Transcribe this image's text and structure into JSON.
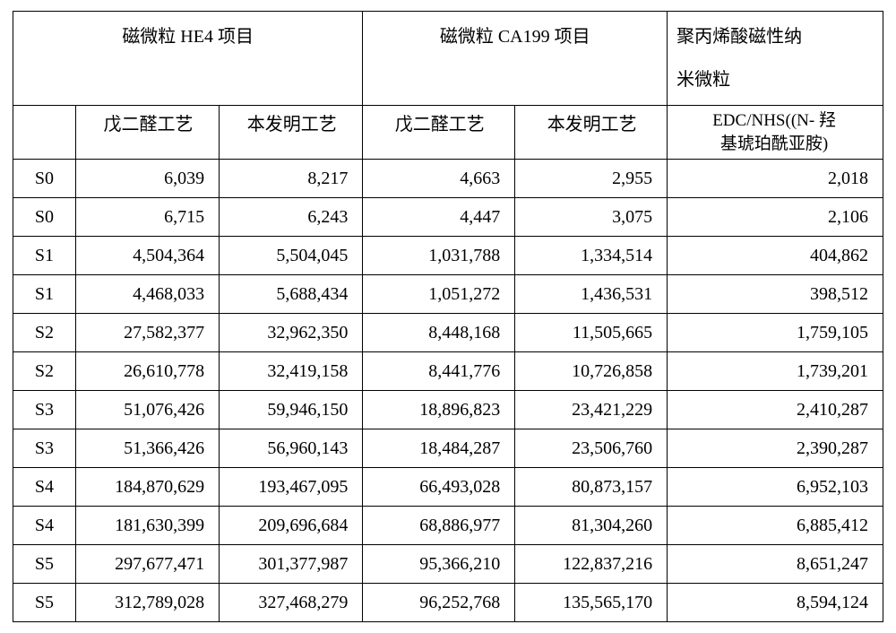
{
  "table": {
    "headers": {
      "group1": "磁微粒 HE4 项目",
      "group2": "磁微粒 CA199 项目",
      "group3_l1": "聚丙烯酸磁性纳",
      "group3_l2": "米微粒",
      "sub_he4_a": "戊二醛工艺",
      "sub_he4_b": "本发明工艺",
      "sub_ca_a": "戊二醛工艺",
      "sub_ca_b": "本发明工艺",
      "sub_paa_l1": "EDC/NHS((N- 羟",
      "sub_paa_l2": "基琥珀酰亚胺)"
    },
    "rows": [
      {
        "label": "S0",
        "v": [
          "6,039",
          "8,217",
          "4,663",
          "2,955",
          "2,018"
        ]
      },
      {
        "label": "S0",
        "v": [
          "6,715",
          "6,243",
          "4,447",
          "3,075",
          "2,106"
        ]
      },
      {
        "label": "S1",
        "v": [
          "4,504,364",
          "5,504,045",
          "1,031,788",
          "1,334,514",
          "404,862"
        ]
      },
      {
        "label": "S1",
        "v": [
          "4,468,033",
          "5,688,434",
          "1,051,272",
          "1,436,531",
          "398,512"
        ]
      },
      {
        "label": "S2",
        "v": [
          "27,582,377",
          "32,962,350",
          "8,448,168",
          "11,505,665",
          "1,759,105"
        ]
      },
      {
        "label": "S2",
        "v": [
          "26,610,778",
          "32,419,158",
          "8,441,776",
          "10,726,858",
          "1,739,201"
        ]
      },
      {
        "label": "S3",
        "v": [
          "51,076,426",
          "59,946,150",
          "18,896,823",
          "23,421,229",
          "2,410,287"
        ]
      },
      {
        "label": "S3",
        "v": [
          "51,366,426",
          "56,960,143",
          "18,484,287",
          "23,506,760",
          "2,390,287"
        ]
      },
      {
        "label": "S4",
        "v": [
          "184,870,629",
          "193,467,095",
          "66,493,028",
          "80,873,157",
          "6,952,103"
        ]
      },
      {
        "label": "S4",
        "v": [
          "181,630,399",
          "209,696,684",
          "68,886,977",
          "81,304,260",
          "6,885,412"
        ]
      },
      {
        "label": "S5",
        "v": [
          "297,677,471",
          "301,377,987",
          "95,366,210",
          "122,837,216",
          "8,651,247"
        ]
      },
      {
        "label": "S5",
        "v": [
          "312,789,028",
          "327,468,279",
          "96,252,768",
          "135,565,170",
          "8,594,124"
        ]
      }
    ]
  }
}
